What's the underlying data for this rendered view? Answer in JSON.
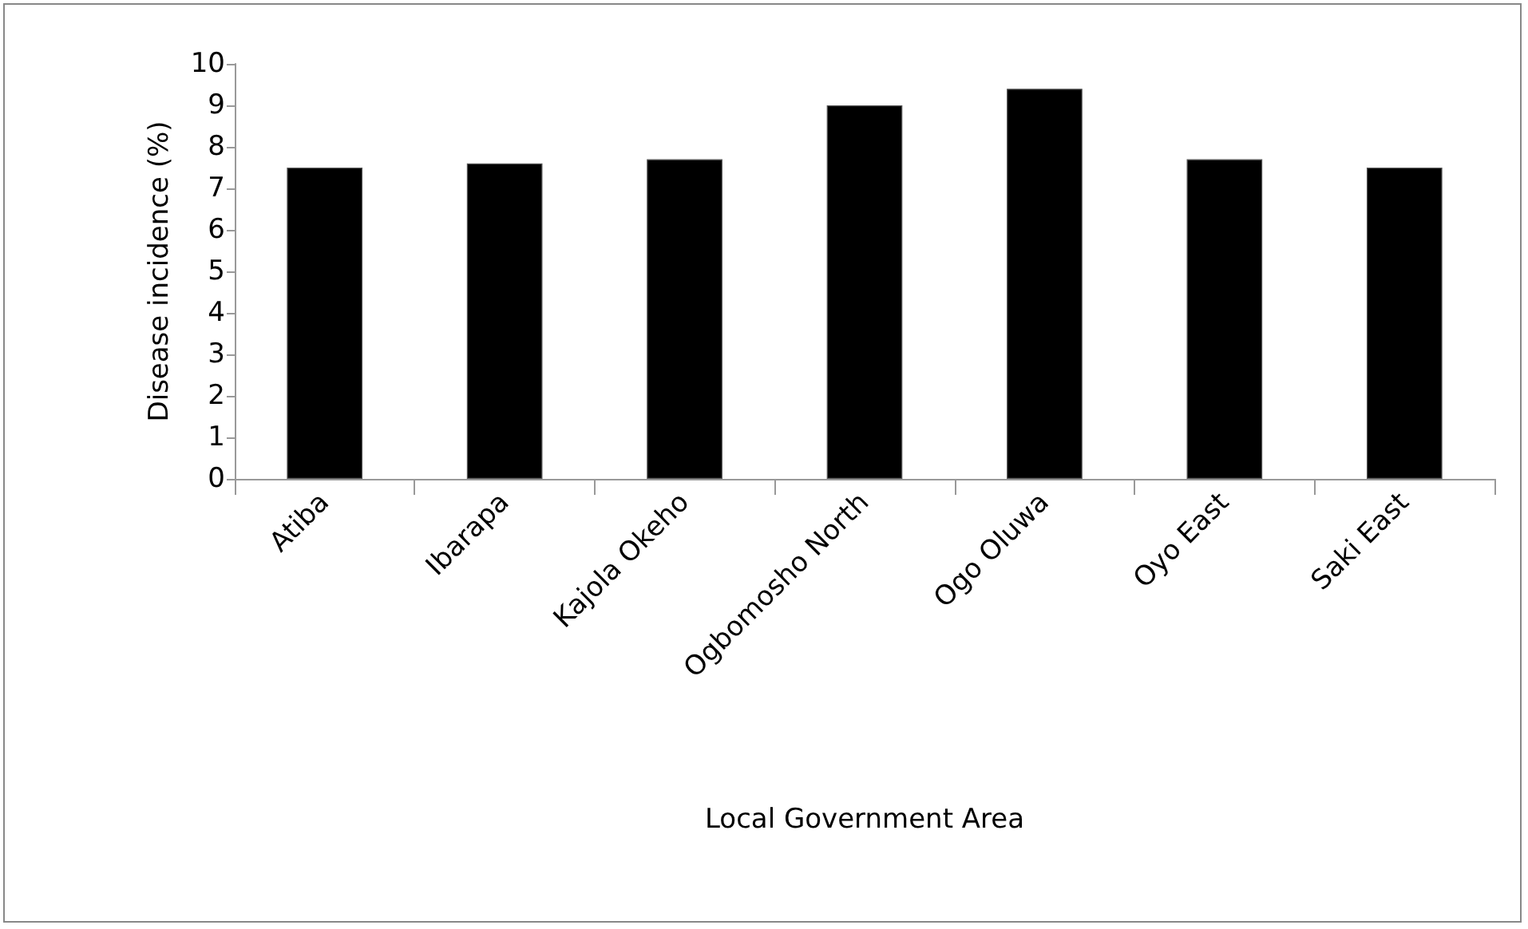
{
  "chart_data": {
    "type": "bar",
    "xlabel": "Local Government Area",
    "ylabel": "Disease incidence (%)",
    "categories": [
      "Atiba",
      "Ibarapa",
      "Kajola Okeho",
      "Ogbomosho North",
      "Ogo Oluwa",
      "Oyo East",
      "Saki East"
    ],
    "values": [
      7.5,
      7.6,
      7.7,
      9.0,
      9.4,
      7.7,
      7.5
    ],
    "color": "#000000",
    "ylim": [
      0,
      10
    ],
    "yticks": [
      0,
      1,
      2,
      3,
      4,
      5,
      6,
      7,
      8,
      9,
      10
    ],
    "grid": false
  }
}
